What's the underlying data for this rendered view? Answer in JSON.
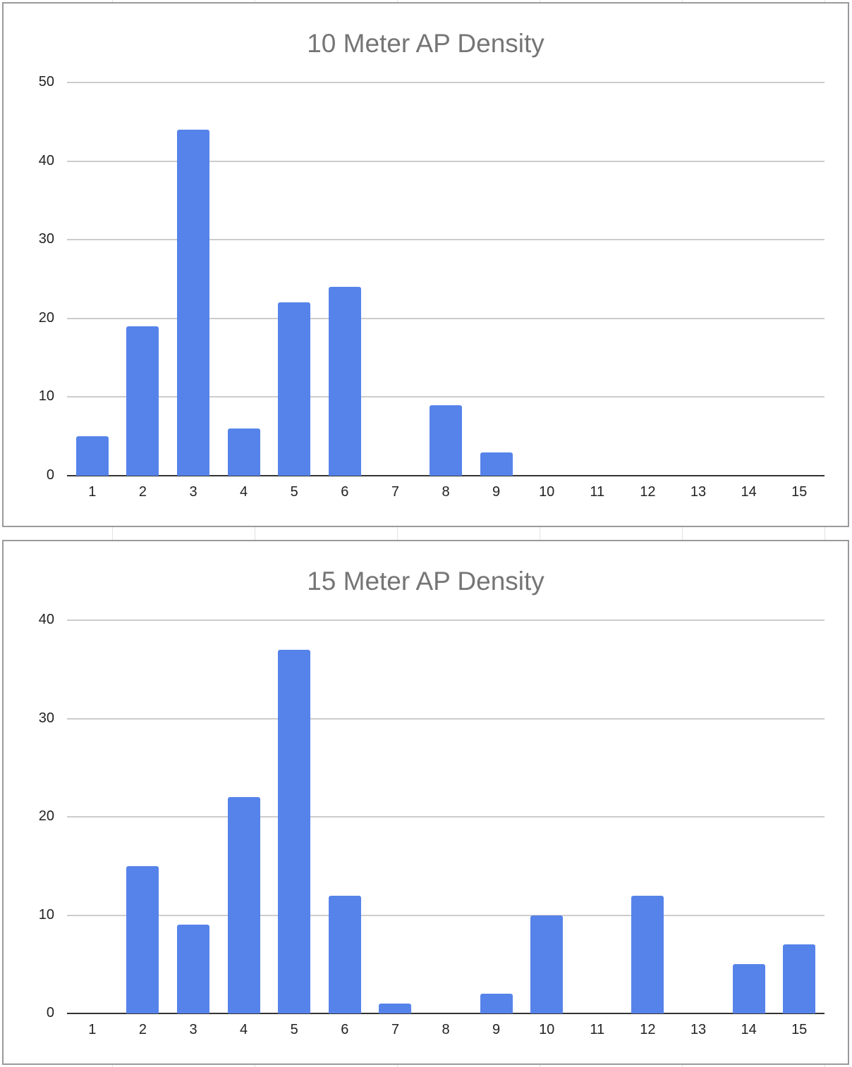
{
  "chart_data": [
    {
      "type": "bar",
      "title": "10 Meter AP Density",
      "xlabel": "",
      "ylabel": "",
      "categories": [
        "1",
        "2",
        "3",
        "4",
        "5",
        "6",
        "7",
        "8",
        "9",
        "10",
        "11",
        "12",
        "13",
        "14",
        "15"
      ],
      "values": [
        5,
        19,
        44,
        6,
        22,
        24,
        0,
        9,
        3,
        0,
        0,
        0,
        0,
        0,
        0
      ],
      "yticks": [
        "0",
        "10",
        "20",
        "30",
        "40",
        "50"
      ],
      "ylim": [
        0,
        50
      ],
      "grid": true,
      "legend": "none",
      "bar_color": "#5683ea"
    },
    {
      "type": "bar",
      "title": "15 Meter AP Density",
      "xlabel": "",
      "ylabel": "",
      "categories": [
        "1",
        "2",
        "3",
        "4",
        "5",
        "6",
        "7",
        "8",
        "9",
        "10",
        "11",
        "12",
        "13",
        "14",
        "15"
      ],
      "values": [
        0,
        15,
        9,
        22,
        37,
        12,
        1,
        0,
        2,
        10,
        0,
        12,
        0,
        5,
        7
      ],
      "yticks": [
        "0",
        "10",
        "20",
        "30",
        "40"
      ],
      "ylim": [
        0,
        40
      ],
      "grid": true,
      "legend": "none",
      "bar_color": "#5683ea"
    }
  ]
}
